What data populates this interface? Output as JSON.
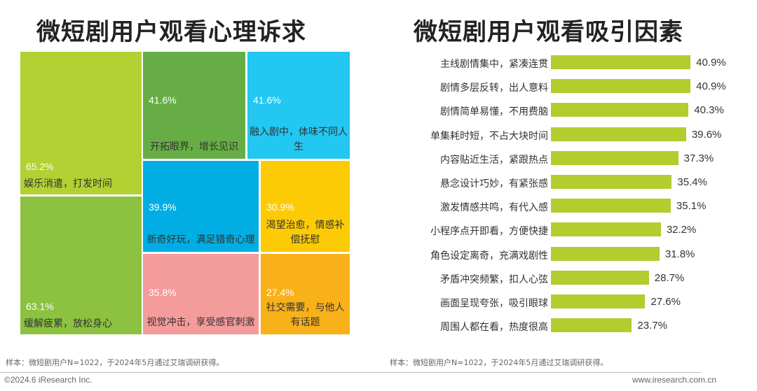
{
  "chart_data": [
    {
      "type": "treemap",
      "title": "微短剧用户观看心理诉求",
      "items": [
        {
          "label": "娱乐消遣，打发时间",
          "value": 65.2,
          "value_text": "65.2%",
          "color": "#B3D133"
        },
        {
          "label": "缓解疲累，放松身心",
          "value": 63.1,
          "value_text": "63.1%",
          "color": "#8CC23F"
        },
        {
          "label": "开拓眼界，增长见识",
          "value": 41.6,
          "value_text": "41.6%",
          "color": "#66AD45"
        },
        {
          "label": "融入剧中，体味不同人生",
          "value": 41.6,
          "value_text": "41.6%",
          "color": "#22C7F2"
        },
        {
          "label": "新奇好玩，满足猎奇心理",
          "value": 39.9,
          "value_text": "39.9%",
          "color": "#00AEE3"
        },
        {
          "label": "渴望治愈，情感补偿抚慰",
          "value": 30.9,
          "value_text": "30.9%",
          "color": "#FDCB05"
        },
        {
          "label": "视觉冲击，享受感官刺激",
          "value": 35.8,
          "value_text": "35.8%",
          "color": "#F49B9C"
        },
        {
          "label": "社交需要，与他人有话题",
          "value": 27.4,
          "value_text": "27.4%",
          "color": "#F9B11A"
        }
      ]
    },
    {
      "type": "bar",
      "orientation": "horizontal",
      "title": "微短剧用户观看吸引因素",
      "bar_color": "#B3CC2E",
      "xlim": [
        0,
        45
      ],
      "categories": [
        "主线剧情集中，紧凑连贯",
        "剧情多层反转，出人意料",
        "剧情简单易懂，不用费脑",
        "单集耗时短，不占大块时间",
        "内容贴近生活，紧跟热点",
        "悬念设计巧妙，有紧张感",
        "激发情感共鸣，有代入感",
        "小程序点开即看，方便快捷",
        "角色设定离奇，充满戏剧性",
        "矛盾冲突频繁，扣人心弦",
        "画面呈现夸张，吸引眼球",
        "周围人都在看，热度很高"
      ],
      "values": [
        40.9,
        40.9,
        40.3,
        39.6,
        37.3,
        35.4,
        35.1,
        32.2,
        31.8,
        28.7,
        27.6,
        23.7
      ],
      "value_labels": [
        "40.9%",
        "40.9%",
        "40.3%",
        "39.6%",
        "37.3%",
        "35.4%",
        "35.1%",
        "32.2%",
        "31.8%",
        "28.7%",
        "27.6%",
        "23.7%"
      ]
    }
  ],
  "notes": {
    "left": "样本：微短剧用户N=1022，于2024年5月通过艾瑞调研获得。",
    "right": "样本：微短剧用户N=1022，于2024年5月通过艾瑞调研获得。"
  },
  "footer": {
    "copyright": "©2024.6 iResearch Inc.",
    "website": "www.iresearch.com.cn"
  }
}
